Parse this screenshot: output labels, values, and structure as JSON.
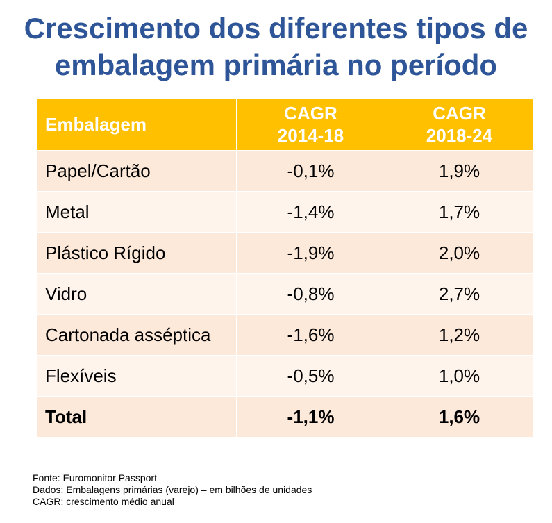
{
  "title_lines": [
    "Crescimento dos diferentes tipos de",
    "embalagem primária no período"
  ],
  "colors": {
    "title": "#2e5597",
    "header_bg": "#ffc000",
    "row_odd": "#fde9d9",
    "row_even": "#fef4ec"
  },
  "chart_data": {
    "type": "table",
    "columns": [
      {
        "lines": [
          "Embalagem"
        ]
      },
      {
        "lines": [
          "CAGR",
          "2014-18"
        ]
      },
      {
        "lines": [
          "CAGR",
          "2018-24"
        ]
      }
    ],
    "rows": [
      {
        "embalagem": "Papel/Cartão",
        "cagr_2014_18": "-0,1%",
        "cagr_2018_24": "1,9%"
      },
      {
        "embalagem": "Metal",
        "cagr_2014_18": "-1,4%",
        "cagr_2018_24": "1,7%"
      },
      {
        "embalagem": "Plástico Rígido",
        "cagr_2014_18": "-1,9%",
        "cagr_2018_24": "2,0%"
      },
      {
        "embalagem": "Vidro",
        "cagr_2014_18": "-0,8%",
        "cagr_2018_24": "2,7%"
      },
      {
        "embalagem": "Cartonada asséptica",
        "cagr_2014_18": "-1,6%",
        "cagr_2018_24": "1,2%"
      },
      {
        "embalagem": "Flexíveis",
        "cagr_2014_18": "-0,5%",
        "cagr_2018_24": "1,0%"
      }
    ],
    "total": {
      "embalagem": "Total",
      "cagr_2014_18": "-1,1%",
      "cagr_2018_24": "1,6%"
    }
  },
  "footnotes": [
    "Fonte: Euromonitor Passport",
    "Dados: Embalagens primárias (varejo) – em bilhões de unidades",
    "CAGR: crescimento médio anual"
  ]
}
